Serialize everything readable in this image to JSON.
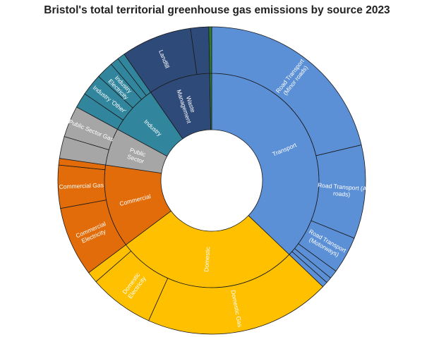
{
  "chart_data": {
    "type": "sunburst",
    "title": "Bristol's total territorial greenhouse gas emissions by source 2023",
    "start_angle_deg": 0,
    "direction": "clockwise",
    "inner": [
      {
        "name": "Transport",
        "value": 37.0,
        "color": "#5B8FD6"
      },
      {
        "name": "Domestic",
        "value": 27.5,
        "color": "#FFC000"
      },
      {
        "name": "Commercial",
        "value": 12.5,
        "color": "#E36C0A"
      },
      {
        "name": "Public Sector",
        "value": 5.6,
        "color": "#A6A6A6"
      },
      {
        "name": "Industry",
        "value": 7.4,
        "color": "#31859C"
      },
      {
        "name": "Waste Management",
        "value": 9.3,
        "color": "#2E4A78"
      },
      {
        "name": "",
        "value": 0.3,
        "color": "#2E7D32"
      }
    ],
    "outer": [
      {
        "name": "Road Transport (Minor roads)",
        "parent": "Transport",
        "value": 21.2,
        "color": "#5B8FD6"
      },
      {
        "name": "Road Transport (A roads)",
        "parent": "Transport",
        "value": 9.8,
        "color": "#5B8FD6"
      },
      {
        "name": "Road Transport (Motorways)",
        "parent": "Transport",
        "value": 3.9,
        "color": "#5B8FD6"
      },
      {
        "name": "",
        "parent": "Transport",
        "value": 0.9,
        "color": "#5B8FD6"
      },
      {
        "name": "",
        "parent": "Transport",
        "value": 0.6,
        "color": "#5B8FD6"
      },
      {
        "name": "",
        "parent": "Transport",
        "value": 0.6,
        "color": "#5B8FD6"
      },
      {
        "name": "Domestic Gas",
        "parent": "Domestic",
        "value": 19.5,
        "color": "#FFC000"
      },
      {
        "name": "Domestic Electricity",
        "parent": "Domestic",
        "value": 6.8,
        "color": "#FFC000"
      },
      {
        "name": "",
        "parent": "Domestic",
        "value": 1.2,
        "color": "#FFC000"
      },
      {
        "name": "Commercial Electricity",
        "parent": "Commercial",
        "value": 7.3,
        "color": "#E36C0A"
      },
      {
        "name": "Commercial Gas",
        "parent": "Commercial",
        "value": 4.5,
        "color": "#E36C0A"
      },
      {
        "name": "",
        "parent": "Commercial",
        "value": 0.7,
        "color": "#E36C0A"
      },
      {
        "name": "",
        "parent": "Public Sector",
        "value": 2.3,
        "color": "#A6A6A6"
      },
      {
        "name": "Public Sector Gas",
        "parent": "Public Sector",
        "value": 3.3,
        "color": "#A6A6A6"
      },
      {
        "name": "",
        "parent": "Industry",
        "value": 1.6,
        "color": "#31859C"
      },
      {
        "name": "Industry 'Other'",
        "parent": "Industry",
        "value": 2.3,
        "color": "#31859C"
      },
      {
        "name": "Industry Electricity",
        "parent": "Industry",
        "value": 1.8,
        "color": "#31859C"
      },
      {
        "name": "",
        "parent": "Industry",
        "value": 0.9,
        "color": "#31859C"
      },
      {
        "name": "",
        "parent": "Industry",
        "value": 0.8,
        "color": "#31859C"
      },
      {
        "name": "Landfill",
        "parent": "Waste Management",
        "value": 7.4,
        "color": "#2E4A78"
      },
      {
        "name": "",
        "parent": "Waste Management",
        "value": 1.9,
        "color": "#2E4A78"
      },
      {
        "name": "",
        "parent": "",
        "value": 0.3,
        "color": "#2E7D32"
      }
    ]
  }
}
